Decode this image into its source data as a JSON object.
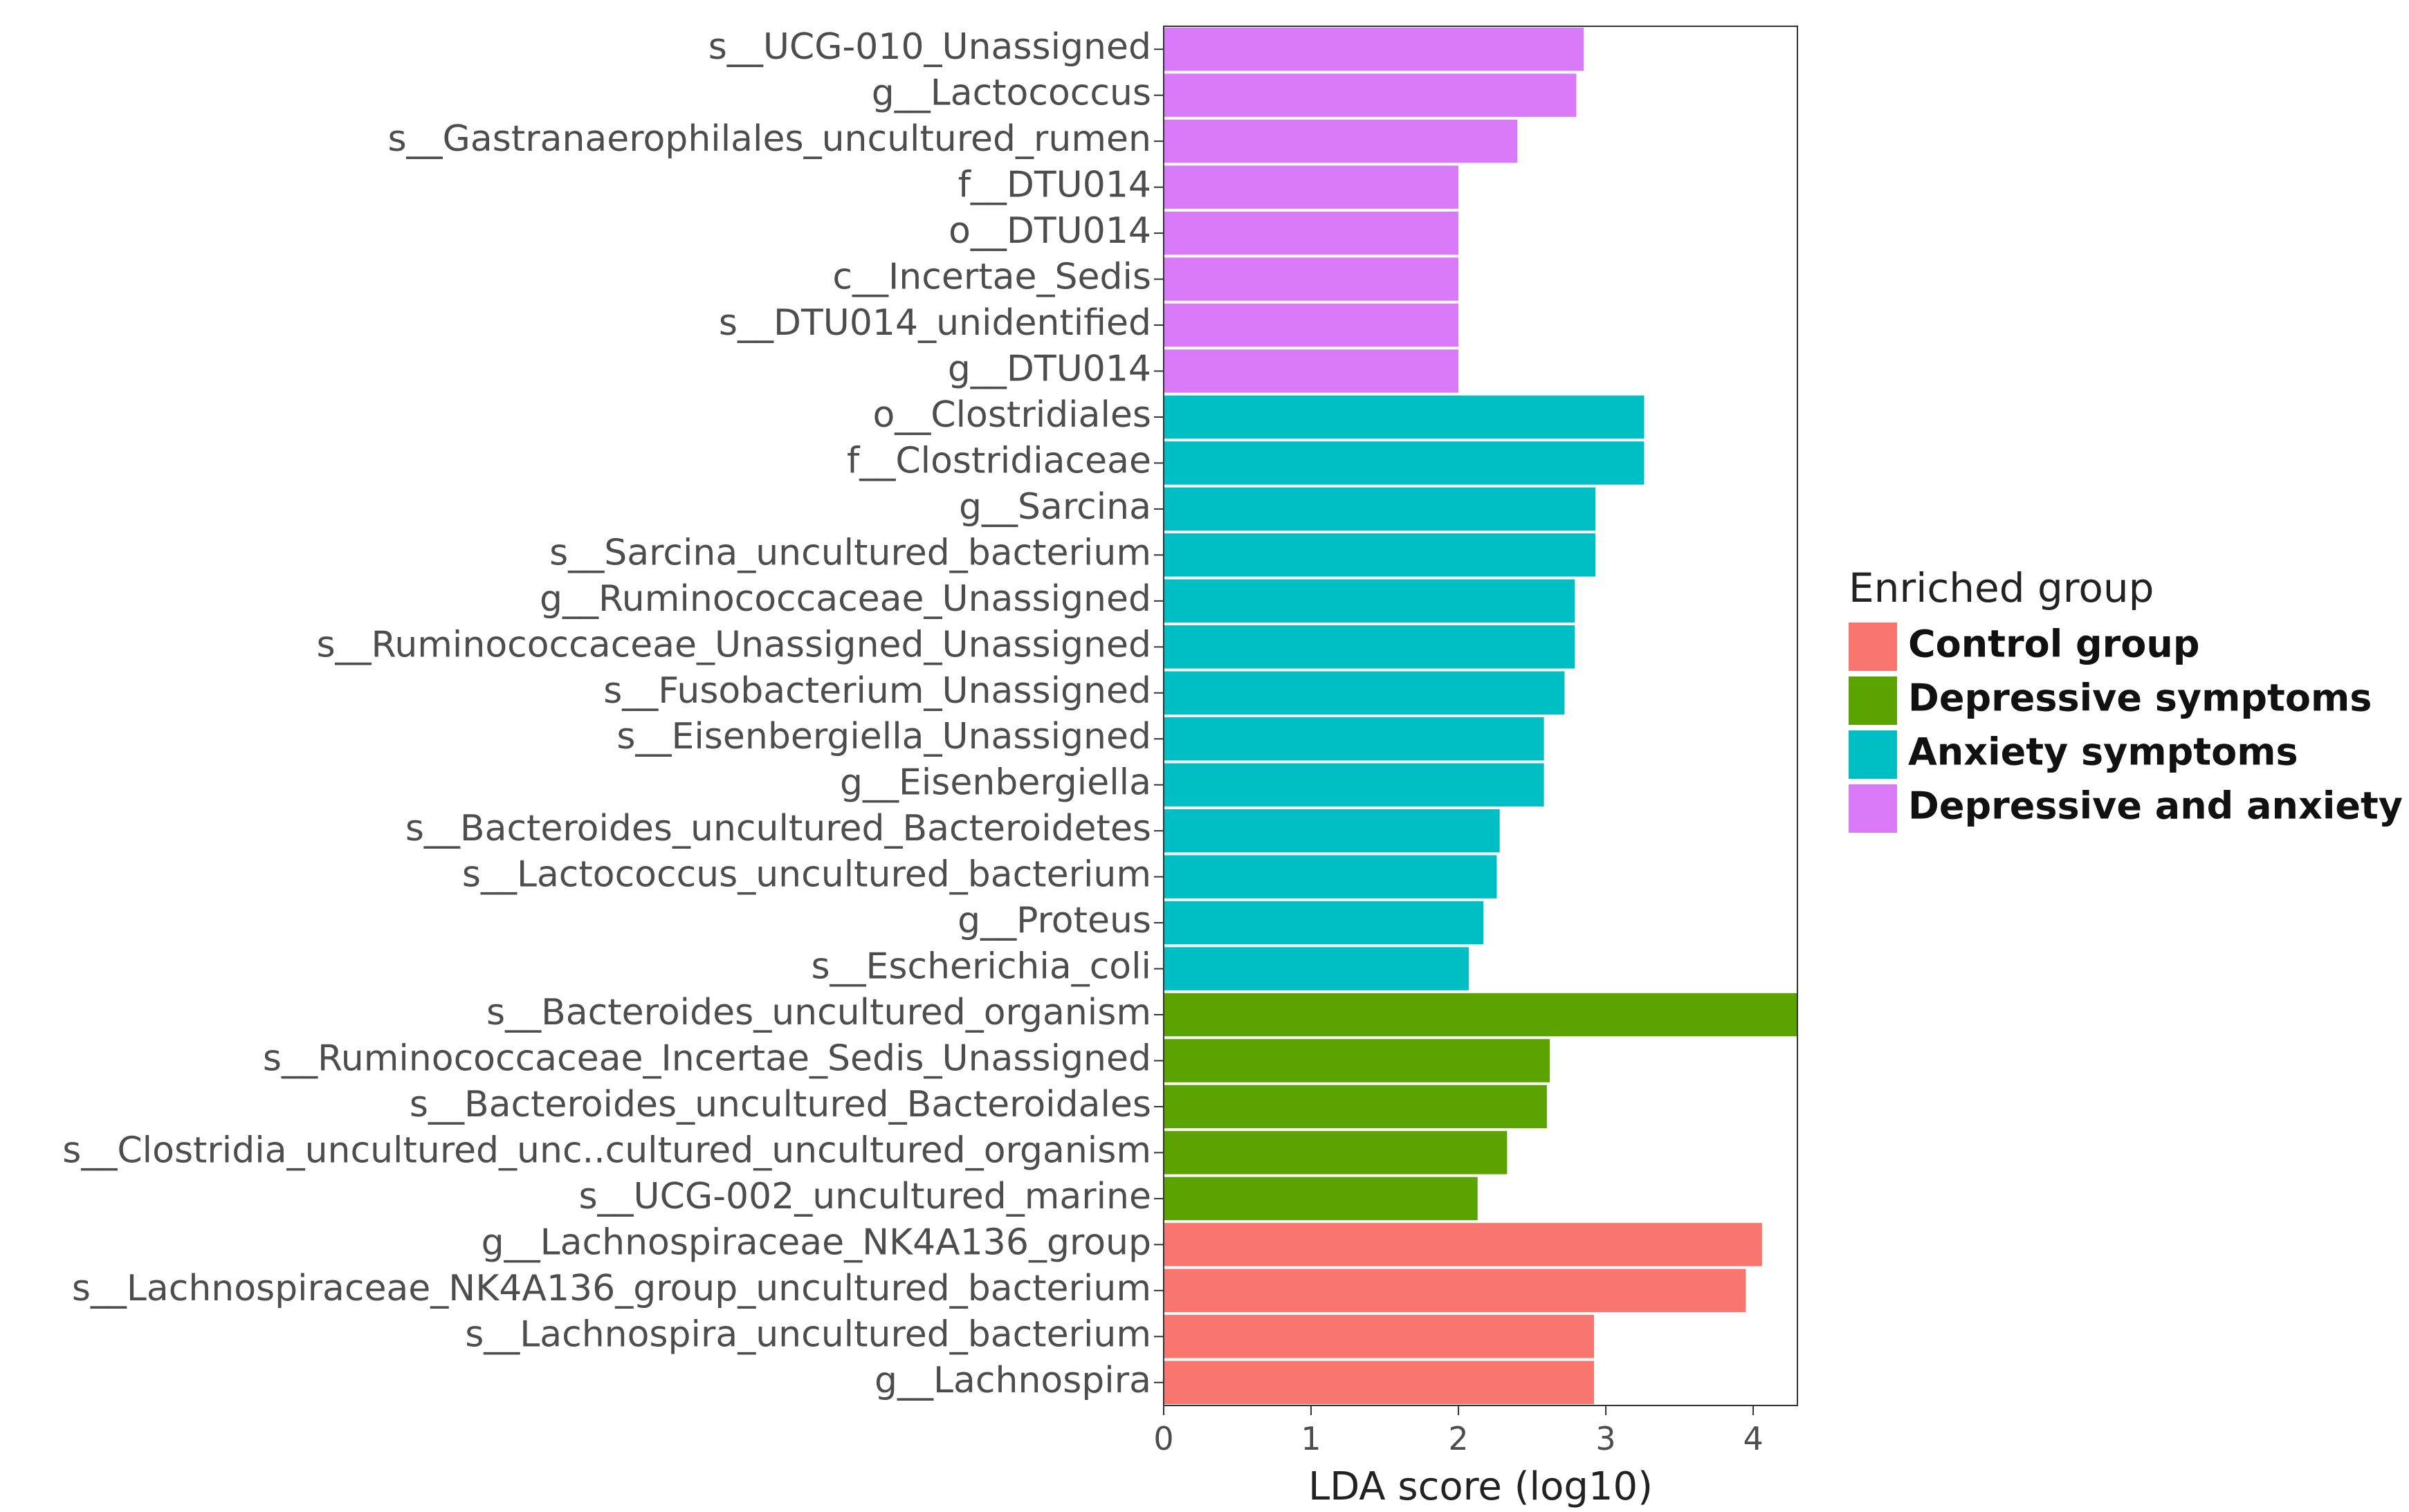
{
  "chart_data": {
    "type": "bar",
    "orientation": "horizontal",
    "xlabel": "LDA score (log10)",
    "ylabel": "",
    "xlim": [
      0,
      4.3
    ],
    "xticks": [
      "0",
      "1",
      "2",
      "3",
      "4"
    ],
    "grid": false,
    "legend": {
      "title": "Enriched group",
      "position": "right",
      "entries": [
        {
          "label": "Control group",
          "color": "#F8766D"
        },
        {
          "label": "Depressive symptoms",
          "color": "#5BA300"
        },
        {
          "label": "Anxiety symptoms",
          "color": "#00BFC4"
        },
        {
          "label": "Depressive and anxiety",
          "color": "#D97BF8"
        }
      ]
    },
    "bars": [
      {
        "label": "s__UCG-010_Unassigned",
        "value": 2.85,
        "group": "Depressive and anxiety"
      },
      {
        "label": "g__Lactococcus",
        "value": 2.8,
        "group": "Depressive and anxiety"
      },
      {
        "label": "s__Gastranaerophilales_uncultured_rumen",
        "value": 2.4,
        "group": "Depressive and anxiety"
      },
      {
        "label": "f__DTU014",
        "value": 2.0,
        "group": "Depressive and anxiety"
      },
      {
        "label": "o__DTU014",
        "value": 2.0,
        "group": "Depressive and anxiety"
      },
      {
        "label": "c__Incertae_Sedis",
        "value": 2.0,
        "group": "Depressive and anxiety"
      },
      {
        "label": "s__DTU014_unidentified",
        "value": 2.0,
        "group": "Depressive and anxiety"
      },
      {
        "label": "g__DTU014",
        "value": 2.0,
        "group": "Depressive and anxiety"
      },
      {
        "label": "o__Clostridiales",
        "value": 3.26,
        "group": "Anxiety symptoms"
      },
      {
        "label": "f__Clostridiaceae",
        "value": 3.26,
        "group": "Anxiety symptoms"
      },
      {
        "label": "g__Sarcina",
        "value": 2.93,
        "group": "Anxiety symptoms"
      },
      {
        "label": "s__Sarcina_uncultured_bacterium",
        "value": 2.93,
        "group": "Anxiety symptoms"
      },
      {
        "label": "g__Ruminococcaceae_Unassigned",
        "value": 2.79,
        "group": "Anxiety symptoms"
      },
      {
        "label": "s__Ruminococcaceae_Unassigned_Unassigned",
        "value": 2.79,
        "group": "Anxiety symptoms"
      },
      {
        "label": "s__Fusobacterium_Unassigned",
        "value": 2.72,
        "group": "Anxiety symptoms"
      },
      {
        "label": "s__Eisenbergiella_Unassigned",
        "value": 2.58,
        "group": "Anxiety symptoms"
      },
      {
        "label": "g__Eisenbergiella",
        "value": 2.58,
        "group": "Anxiety symptoms"
      },
      {
        "label": "s__Bacteroides_uncultured_Bacteroidetes",
        "value": 2.28,
        "group": "Anxiety symptoms"
      },
      {
        "label": "s__Lactococcus_uncultured_bacterium",
        "value": 2.26,
        "group": "Anxiety symptoms"
      },
      {
        "label": "g__Proteus",
        "value": 2.17,
        "group": "Anxiety symptoms"
      },
      {
        "label": "s__Escherichia_coli",
        "value": 2.07,
        "group": "Anxiety symptoms"
      },
      {
        "label": "s__Bacteroides_uncultured_organism",
        "value": 4.3,
        "group": "Depressive symptoms"
      },
      {
        "label": "s__Ruminococcaceae_Incertae_Sedis_Unassigned",
        "value": 2.62,
        "group": "Depressive symptoms"
      },
      {
        "label": "s__Bacteroides_uncultured_Bacteroidales",
        "value": 2.6,
        "group": "Depressive symptoms"
      },
      {
        "label": "s__Clostridia_uncultured_unc..cultured_uncultured_organism",
        "value": 2.33,
        "group": "Depressive symptoms"
      },
      {
        "label": "s__UCG-002_uncultured_marine",
        "value": 2.13,
        "group": "Depressive symptoms"
      },
      {
        "label": "g__Lachnospiraceae_NK4A136_group",
        "value": 4.06,
        "group": "Control group"
      },
      {
        "label": "s__Lachnospiraceae_NK4A136_group_uncultured_bacterium",
        "value": 3.95,
        "group": "Control group"
      },
      {
        "label": "s__Lachnospira_uncultured_bacterium",
        "value": 2.92,
        "group": "Control group"
      },
      {
        "label": "g__Lachnospira",
        "value": 2.92,
        "group": "Control group"
      }
    ]
  }
}
